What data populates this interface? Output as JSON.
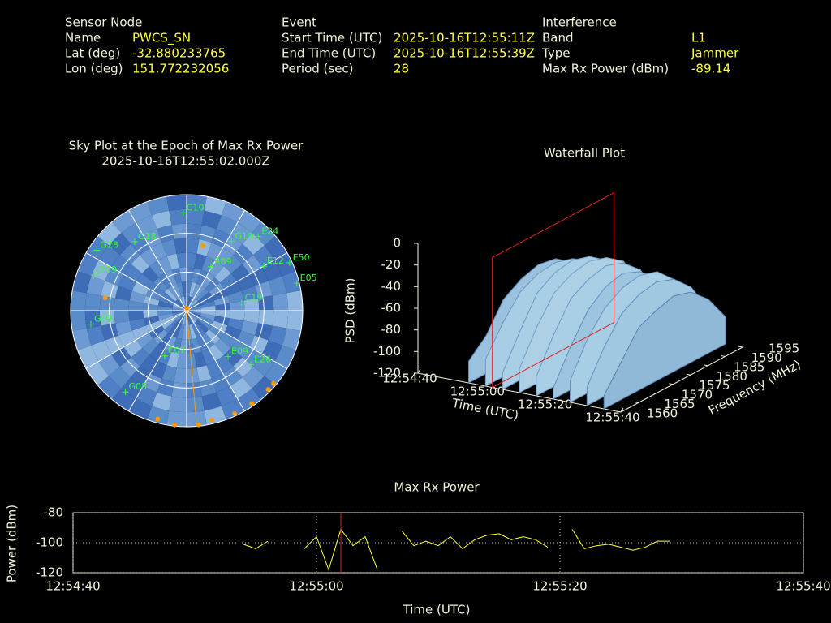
{
  "header": {
    "sensor_node": {
      "title": "Sensor Node",
      "labels": [
        "Name",
        "Lat (deg)",
        "Lon (deg)"
      ],
      "values": [
        "PWCS_SN",
        "-32.880233765",
        "151.772232056"
      ]
    },
    "event": {
      "title": "Event",
      "labels": [
        "Start Time (UTC)",
        "End Time (UTC)",
        "Period (sec)"
      ],
      "values": [
        "2025-10-16T12:55:11Z",
        "2025-10-16T12:55:39Z",
        "28"
      ]
    },
    "interference": {
      "title": "Interference",
      "labels": [
        "Band",
        "Type",
        "Max Rx Power (dBm)"
      ],
      "values": [
        "L1",
        "Jammer",
        "-89.14"
      ]
    }
  },
  "chart_data": [
    {
      "type": "sky",
      "title": "Sky Plot at the Epoch of Max Rx Power",
      "subtitle": "2025-10-16T12:55:02.000Z",
      "el_rings": [
        0,
        30,
        60
      ],
      "az_lines": [
        0,
        30,
        60,
        90,
        120,
        150,
        180,
        210,
        240,
        270,
        300,
        330
      ],
      "satellite_color": "#33ff33",
      "satellites": [
        {
          "name": "G19",
          "az": 33,
          "el": 26
        },
        {
          "name": "E24",
          "az": 44,
          "el": 10
        },
        {
          "name": "E12",
          "az": 60,
          "el": 21
        },
        {
          "name": "E50",
          "az": 65,
          "el": 2
        },
        {
          "name": "E05",
          "az": 76,
          "el": 2
        },
        {
          "name": "C19",
          "az": 82,
          "el": 47
        },
        {
          "name": "E26",
          "az": 130,
          "el": 25
        },
        {
          "name": "E09",
          "az": 138,
          "el": 42
        },
        {
          "name": "G08",
          "az": 217,
          "el": 11
        },
        {
          "name": "J209",
          "az": 291,
          "el": 13
        },
        {
          "name": "G09",
          "az": 262,
          "el": 15
        },
        {
          "name": "R09",
          "az": 29,
          "el": 51
        },
        {
          "name": "G28",
          "az": 304,
          "el": 6
        },
        {
          "name": "C07",
          "az": 206,
          "el": 51
        },
        {
          "name": "G18",
          "az": 323,
          "el": 23
        },
        {
          "name": "C10",
          "az": 358,
          "el": 14
        }
      ],
      "interference_color": "#ff9900",
      "bearing": 175,
      "interference_points": {
        "az": [
          195,
          186,
          174,
          167,
          155,
          145,
          134,
          130,
          0,
          14,
          279
        ],
        "el": [
          3,
          1,
          1,
          3,
          2,
          2,
          2,
          2,
          88,
          38,
          26
        ]
      }
    },
    {
      "type": "waterfall",
      "title": "Waterfall Plot",
      "xlabel": "Time (UTC)",
      "ylabel": "Frequency (MHz)",
      "zlabel": "PSD (dBm)",
      "xlim": [
        "12:54:40",
        "12:55:40"
      ],
      "xticks": [
        "12:54:40",
        "12:55:00",
        "12:55:20",
        "12:55:40"
      ],
      "ylim": [
        1560,
        1595
      ],
      "yticks": [
        1560,
        1565,
        1570,
        1575,
        1580,
        1585,
        1590,
        1595
      ],
      "zlim": [
        -120,
        0
      ],
      "zticks": [
        0,
        -20,
        -40,
        -60,
        -80,
        -100,
        -120
      ],
      "marker_x": "12:55:02",
      "marker_color": "#e02020",
      "colormap": [
        "#2f5f9f",
        "#a9cfe6",
        "#f5e9bf"
      ],
      "frequencies": [
        1560,
        1565,
        1570,
        1575,
        1580,
        1585,
        1590,
        1595
      ],
      "rows": [
        {
          "x": "12:54:55",
          "values": [
            -100,
            -85,
            -60,
            -50,
            -45,
            -48,
            -60,
            -90
          ]
        },
        {
          "x": "12:55:00",
          "values": [
            -95,
            -70,
            -50,
            -42,
            -40,
            -45,
            -55,
            -88
          ]
        },
        {
          "x": "12:55:05",
          "values": [
            -105,
            -75,
            -48,
            -38,
            -35,
            -40,
            -52,
            -85
          ]
        },
        {
          "x": "12:55:10",
          "values": [
            -98,
            -68,
            -45,
            -36,
            -33,
            -38,
            -50,
            -86
          ]
        },
        {
          "x": "12:55:15",
          "values": [
            -102,
            -72,
            -47,
            -38,
            -34,
            -40,
            -55,
            -90
          ]
        },
        {
          "x": "12:55:20",
          "values": [
            -110,
            -80,
            -55,
            -42,
            -38,
            -45,
            -60,
            -92
          ]
        },
        {
          "x": "12:55:25",
          "values": [
            -100,
            -70,
            -50,
            -40,
            -37,
            -42,
            -58,
            -88
          ]
        },
        {
          "x": "12:55:30",
          "values": [
            -103,
            -74,
            -52,
            -43,
            -40,
            -46,
            -62,
            -92
          ]
        },
        {
          "x": "12:55:35",
          "values": [
            -108,
            -85,
            -62,
            -55,
            -50,
            -55,
            -70,
            -95
          ]
        }
      ]
    },
    {
      "type": "line",
      "title": "Max Rx Power",
      "xlabel": "Time (UTC)",
      "ylabel": "Power (dBm)",
      "xlim": [
        "12:54:40",
        "12:55:40"
      ],
      "xticks": [
        "12:54:40",
        "12:55:00",
        "12:55:20",
        "12:55:40"
      ],
      "ylim": [
        -120,
        -80
      ],
      "yticks": [
        -80,
        -100,
        -120
      ],
      "grid": true,
      "color": "#ffff33",
      "marker_x": "12:55:02",
      "marker_color": "#e02020",
      "x": [
        "12:54:54",
        "12:54:55",
        "12:54:56",
        "12:54:57",
        "12:54:58",
        "12:54:59",
        "12:55:00",
        "12:55:01",
        "12:55:02",
        "12:55:03",
        "12:55:04",
        "12:55:05",
        "12:55:06",
        "12:55:07",
        "12:55:08",
        "12:55:09",
        "12:55:10",
        "12:55:11",
        "12:55:12",
        "12:55:13",
        "12:55:14",
        "12:55:15",
        "12:55:16",
        "12:55:17",
        "12:55:18",
        "12:55:19",
        "12:55:20",
        "12:55:21",
        "12:55:22",
        "12:55:23",
        "12:55:24",
        "12:55:25",
        "12:55:26",
        "12:55:27",
        "12:55:28",
        "12:55:29"
      ],
      "values": [
        -101,
        -104,
        -99,
        null,
        null,
        -104,
        -96,
        -118,
        -91,
        -102,
        -96,
        -118,
        null,
        -92,
        -102,
        -99,
        -102,
        -96,
        -104,
        -98,
        -95,
        -94,
        -98,
        -96,
        -98,
        -103,
        null,
        -91,
        -104,
        -102,
        -101,
        -103,
        -105,
        -103,
        -99,
        -99
      ]
    }
  ]
}
